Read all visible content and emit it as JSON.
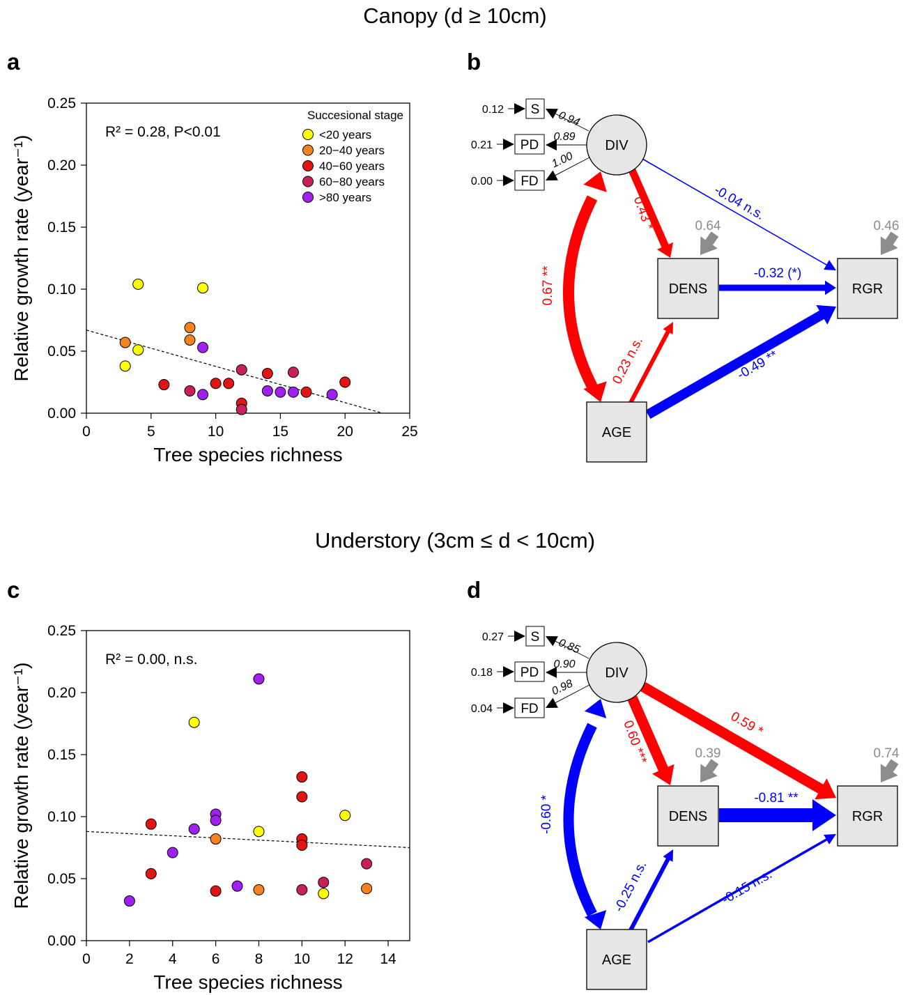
{
  "sections": [
    {
      "title": "Canopy (d ≥ 10cm)"
    },
    {
      "title": "Understory (3cm ≤ d < 10cm)"
    }
  ],
  "panels": {
    "a": "a",
    "b": "b",
    "c": "c",
    "d": "d"
  },
  "legend": {
    "title": "Succesional stage",
    "items": [
      {
        "label": "<20 years",
        "color": "#ffff00"
      },
      {
        "label": "20−40 years",
        "color": "#f58220"
      },
      {
        "label": "40−60 years",
        "color": "#e31414"
      },
      {
        "label": "60−80 years",
        "color": "#c8205a"
      },
      {
        "label": ">80 years",
        "color": "#a020f0"
      }
    ]
  },
  "chart_data": [
    {
      "type": "scatter",
      "panel": "a",
      "xlabel": "Tree species richness",
      "ylabel": "Relative growth rate (year⁻¹)",
      "xlim": [
        0,
        25
      ],
      "ylim": [
        0,
        0.25
      ],
      "xticks": [
        "0",
        "5",
        "10",
        "15",
        "20",
        "25"
      ],
      "yticks": [
        "0.00",
        "0.05",
        "0.10",
        "0.15",
        "0.20",
        "0.25"
      ],
      "annotation": "R² = 0.28, P<0.01",
      "trend": {
        "x": [
          0,
          22.9
        ],
        "y": [
          0.067,
          0.0
        ],
        "style": "dashed"
      },
      "legend_position": "top-right",
      "points": [
        {
          "x": 3,
          "y": 0.038,
          "stage": 0
        },
        {
          "x": 4,
          "y": 0.051,
          "stage": 0
        },
        {
          "x": 4,
          "y": 0.104,
          "stage": 0
        },
        {
          "x": 9,
          "y": 0.101,
          "stage": 0
        },
        {
          "x": 3,
          "y": 0.057,
          "stage": 1
        },
        {
          "x": 8,
          "y": 0.069,
          "stage": 1
        },
        {
          "x": 8,
          "y": 0.059,
          "stage": 1
        },
        {
          "x": 6,
          "y": 0.023,
          "stage": 2
        },
        {
          "x": 10,
          "y": 0.024,
          "stage": 2
        },
        {
          "x": 11,
          "y": 0.024,
          "stage": 2
        },
        {
          "x": 12,
          "y": 0.008,
          "stage": 2
        },
        {
          "x": 14,
          "y": 0.032,
          "stage": 2
        },
        {
          "x": 17,
          "y": 0.017,
          "stage": 2
        },
        {
          "x": 20,
          "y": 0.025,
          "stage": 2
        },
        {
          "x": 8,
          "y": 0.018,
          "stage": 3
        },
        {
          "x": 12,
          "y": 0.035,
          "stage": 3
        },
        {
          "x": 12,
          "y": 0.003,
          "stage": 3
        },
        {
          "x": 16,
          "y": 0.033,
          "stage": 3
        },
        {
          "x": 9,
          "y": 0.053,
          "stage": 4
        },
        {
          "x": 9,
          "y": 0.015,
          "stage": 4
        },
        {
          "x": 14,
          "y": 0.018,
          "stage": 4
        },
        {
          "x": 15,
          "y": 0.017,
          "stage": 4
        },
        {
          "x": 16,
          "y": 0.017,
          "stage": 4
        },
        {
          "x": 19,
          "y": 0.015,
          "stage": 4
        }
      ]
    },
    {
      "type": "scatter",
      "panel": "c",
      "xlabel": "Tree species richness",
      "ylabel": "Relative growth rate (year⁻¹)",
      "xlim": [
        0,
        15
      ],
      "ylim": [
        0,
        0.25
      ],
      "xticks": [
        "0",
        "2",
        "4",
        "6",
        "8",
        "10",
        "12",
        "14"
      ],
      "yticks": [
        "0.00",
        "0.05",
        "0.10",
        "0.15",
        "0.20",
        "0.25"
      ],
      "annotation": "R² = 0.00, n.s.",
      "trend": {
        "x": [
          0,
          15
        ],
        "y": [
          0.088,
          0.075
        ],
        "style": "dashed"
      },
      "points": [
        {
          "x": 5,
          "y": 0.176,
          "stage": 0
        },
        {
          "x": 8,
          "y": 0.088,
          "stage": 0
        },
        {
          "x": 12,
          "y": 0.101,
          "stage": 0
        },
        {
          "x": 11,
          "y": 0.038,
          "stage": 0
        },
        {
          "x": 6,
          "y": 0.082,
          "stage": 1
        },
        {
          "x": 8,
          "y": 0.041,
          "stage": 1
        },
        {
          "x": 13,
          "y": 0.042,
          "stage": 1
        },
        {
          "x": 3,
          "y": 0.094,
          "stage": 2
        },
        {
          "x": 3,
          "y": 0.054,
          "stage": 2
        },
        {
          "x": 6,
          "y": 0.04,
          "stage": 2
        },
        {
          "x": 10,
          "y": 0.132,
          "stage": 2
        },
        {
          "x": 10,
          "y": 0.116,
          "stage": 2
        },
        {
          "x": 10,
          "y": 0.082,
          "stage": 2
        },
        {
          "x": 10,
          "y": 0.077,
          "stage": 2
        },
        {
          "x": 10,
          "y": 0.041,
          "stage": 3
        },
        {
          "x": 11,
          "y": 0.047,
          "stage": 3
        },
        {
          "x": 13,
          "y": 0.062,
          "stage": 3
        },
        {
          "x": 2,
          "y": 0.032,
          "stage": 4
        },
        {
          "x": 4,
          "y": 0.071,
          "stage": 4
        },
        {
          "x": 5,
          "y": 0.09,
          "stage": 4
        },
        {
          "x": 6,
          "y": 0.102,
          "stage": 4
        },
        {
          "x": 6,
          "y": 0.097,
          "stage": 4
        },
        {
          "x": 7,
          "y": 0.044,
          "stage": 4
        },
        {
          "x": 8,
          "y": 0.211,
          "stage": 4
        }
      ]
    }
  ],
  "sem": [
    {
      "panel": "b",
      "nodes": {
        "DIV": "DIV",
        "DENS": "DENS",
        "RGR": "RGR",
        "AGE": "AGE",
        "S": "S",
        "PD": "PD",
        "FD": "FD"
      },
      "indicator_errors": {
        "S": "0.12",
        "PD": "0.21",
        "FD": "0.00"
      },
      "loadings": {
        "S": "0.94",
        "PD": "0.89",
        "FD": "1.00"
      },
      "r2": {
        "DENS": "0.64",
        "RGR": "0.46"
      },
      "paths": {
        "div_rgr": {
          "label": "-0.04 n.s.",
          "color": "#0000ff",
          "width": 1.5
        },
        "div_dens": {
          "label": "0.43 *",
          "color": "#ff0000",
          "width": 11
        },
        "age_div": {
          "label": "0.67 **",
          "color": "#ff0000",
          "width": 16
        },
        "dens_rgr": {
          "label": "-0.32 (*)",
          "color": "#0000ff",
          "width": 9
        },
        "age_dens": {
          "label": "0.23 n.s.",
          "color": "#ff0000",
          "width": 6
        },
        "age_rgr": {
          "label": "-0.49 **",
          "color": "#0000ff",
          "width": 14
        }
      }
    },
    {
      "panel": "d",
      "nodes": {
        "DIV": "DIV",
        "DENS": "DENS",
        "RGR": "RGR",
        "AGE": "AGE",
        "S": "S",
        "PD": "PD",
        "FD": "FD"
      },
      "indicator_errors": {
        "S": "0.27",
        "PD": "0.18",
        "FD": "0.04"
      },
      "loadings": {
        "S": "0.85",
        "PD": "0.90",
        "FD": "0.98"
      },
      "r2": {
        "DENS": "0.39",
        "RGR": "0.74"
      },
      "paths": {
        "div_rgr": {
          "label": "0.59 *",
          "color": "#ff0000",
          "width": 15
        },
        "div_dens": {
          "label": "0.60 ***",
          "color": "#ff0000",
          "width": 15
        },
        "age_div": {
          "label": "-0.60 *",
          "color": "#0000ff",
          "width": 15
        },
        "dens_rgr": {
          "label": "-0.81 **",
          "color": "#0000ff",
          "width": 20
        },
        "age_dens": {
          "label": "-0.25 n.s.",
          "color": "#0000ff",
          "width": 6
        },
        "age_rgr": {
          "label": "-0.15 n.s.",
          "color": "#0000ff",
          "width": 3.5
        }
      }
    }
  ]
}
